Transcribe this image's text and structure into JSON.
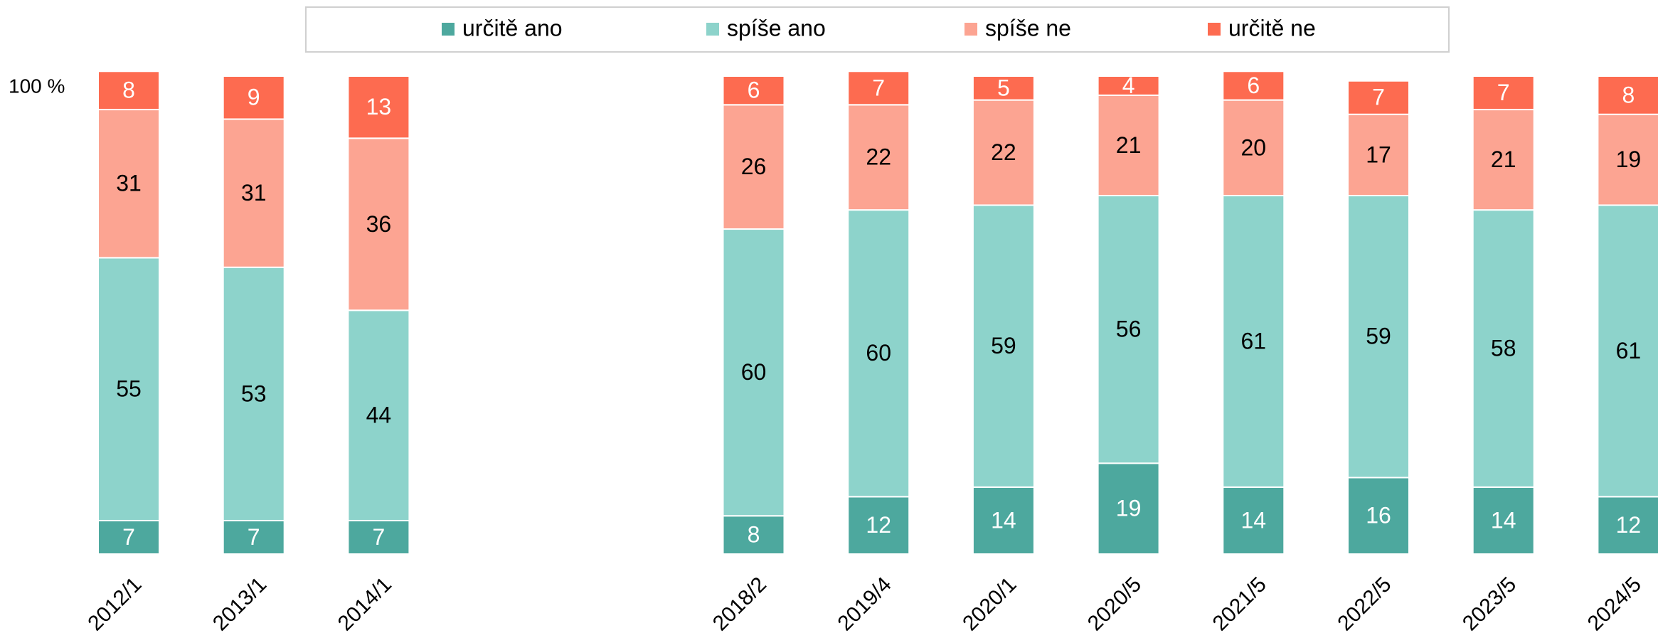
{
  "chart_data": {
    "type": "stacked_bar",
    "categories": [
      "2012/1",
      "2013/1",
      "2014/1",
      null,
      null,
      "2018/2",
      "2019/4",
      "2020/1",
      "2020/5",
      "2021/5",
      "2022/5",
      "2023/5",
      "2024/5"
    ],
    "series": [
      {
        "name": "určitě ano",
        "color": "#4da89e",
        "label_color": "#ffffff",
        "values": [
          7,
          7,
          7,
          null,
          null,
          8,
          12,
          14,
          19,
          14,
          16,
          14,
          12
        ]
      },
      {
        "name": "spíše ano",
        "color": "#8dd3cb",
        "label_color": "#000000",
        "values": [
          55,
          53,
          44,
          null,
          null,
          60,
          60,
          59,
          56,
          61,
          59,
          58,
          61
        ]
      },
      {
        "name": "spíše ne",
        "color": "#fca492",
        "label_color": "#000000",
        "values": [
          31,
          31,
          36,
          null,
          null,
          26,
          22,
          22,
          21,
          20,
          17,
          21,
          19
        ]
      },
      {
        "name": "určitě ne",
        "color": "#fd6b50",
        "label_color": "#ffffff",
        "values": [
          8,
          9,
          13,
          null,
          null,
          6,
          7,
          5,
          4,
          6,
          7,
          7,
          8
        ]
      }
    ],
    "ylim": [
      0,
      100
    ],
    "yticks": [
      {
        "value": 100,
        "label": "100 %"
      }
    ],
    "legend": "top"
  }
}
